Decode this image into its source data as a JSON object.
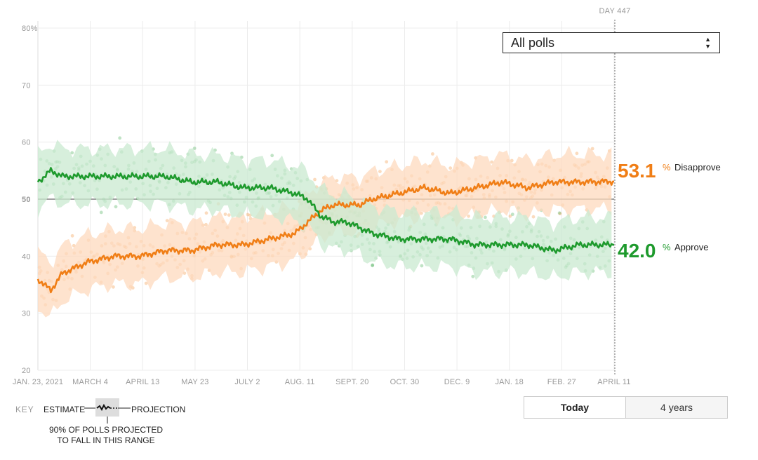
{
  "chart_data": {
    "type": "line",
    "x_ticks": [
      "JAN. 23, 2021",
      "MARCH 4",
      "APRIL 13",
      "MAY 23",
      "JULY 2",
      "AUG. 11",
      "SEPT. 20",
      "OCT. 30",
      "DEC. 9",
      "JAN. 18",
      "FEB. 27",
      "APRIL 11"
    ],
    "y_ticks": [
      "80%",
      "70",
      "60",
      "50",
      "40",
      "30",
      "20"
    ],
    "y_tick_values": [
      80,
      70,
      60,
      50,
      40,
      30,
      20
    ],
    "ylim": [
      20,
      80
    ],
    "xlim_days": [
      1,
      447
    ],
    "reference_line": 50,
    "day_marker": "DAY 447",
    "grid": true,
    "series": [
      {
        "name": "Disapprove",
        "color": "#f07e16",
        "band_color": "#fdd9bd",
        "end_value": "53.1",
        "end_suffix": "%",
        "days": [
          1,
          6,
          11,
          20,
          40,
          60,
          80,
          100,
          120,
          140,
          160,
          180,
          200,
          210,
          220,
          230,
          240,
          250,
          260,
          280,
          300,
          320,
          340,
          360,
          380,
          400,
          420,
          447
        ],
        "values": [
          36,
          35,
          34,
          37,
          39,
          40,
          40,
          41,
          41,
          42,
          42,
          43,
          44,
          46,
          48,
          49,
          49,
          49,
          50,
          51,
          52,
          51,
          52,
          53,
          52,
          53,
          53,
          53.1
        ]
      },
      {
        "name": "Approve",
        "color": "#1e9a2d",
        "band_color": "#c9ead0",
        "end_value": "42.0",
        "end_suffix": "%",
        "days": [
          1,
          6,
          11,
          20,
          40,
          60,
          80,
          100,
          120,
          140,
          160,
          180,
          200,
          210,
          220,
          230,
          240,
          250,
          260,
          280,
          300,
          320,
          340,
          360,
          380,
          400,
          420,
          447
        ],
        "values": [
          53,
          54,
          55,
          54,
          54,
          54,
          54,
          54,
          53,
          53,
          52,
          52,
          51,
          50,
          47,
          46,
          46,
          45,
          44,
          43,
          43,
          43,
          42,
          42,
          42,
          41,
          42,
          42.0
        ]
      }
    ]
  },
  "controls": {
    "poll_filter": "All polls",
    "range_options": [
      "Today",
      "4 years"
    ]
  },
  "key": {
    "title": "KEY",
    "estimate": "ESTIMATE",
    "projection": "PROJECTION",
    "note_line1": "90% OF POLLS PROJECTED",
    "note_line2": "TO FALL IN THIS RANGE"
  }
}
